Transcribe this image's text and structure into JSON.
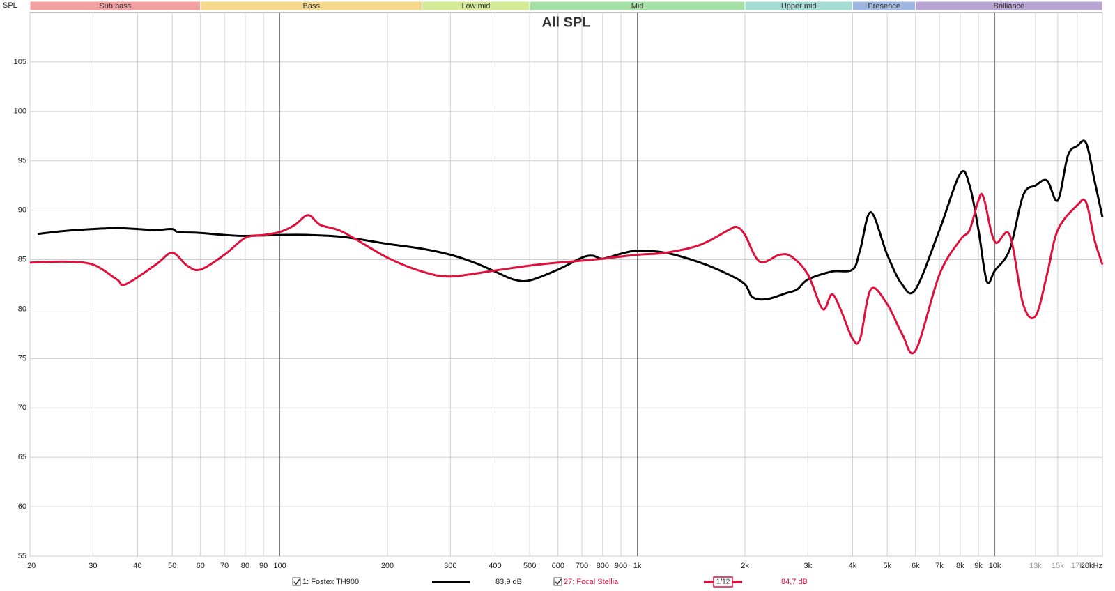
{
  "chart_data": {
    "type": "line",
    "title": "All SPL",
    "y_label": "SPL",
    "log_x": true,
    "grid": true,
    "xlim": [
      20,
      20000
    ],
    "ylim": [
      55,
      110
    ],
    "yticks": [
      55,
      60,
      65,
      70,
      75,
      80,
      85,
      90,
      95,
      100,
      105
    ],
    "xticks": [
      20,
      30,
      40,
      50,
      60,
      70,
      80,
      90,
      100,
      200,
      300,
      400,
      500,
      600,
      700,
      800,
      900,
      {
        "value": 1000,
        "label": "1k"
      },
      {
        "value": 2000,
        "label": "2k"
      },
      {
        "value": 3000,
        "label": "3k"
      },
      {
        "value": 4000,
        "label": "4k"
      },
      {
        "value": 5000,
        "label": "5k"
      },
      {
        "value": 6000,
        "label": "6k"
      },
      {
        "value": 7000,
        "label": "7k"
      },
      {
        "value": 8000,
        "label": "8k"
      },
      {
        "value": 9000,
        "label": "9k"
      },
      {
        "value": 10000,
        "label": "10k"
      },
      {
        "value": 13000,
        "label": "13k"
      },
      {
        "value": 15000,
        "label": "15k"
      },
      {
        "value": 17000,
        "label": "17k"
      },
      {
        "value": 20000,
        "label": "20kHz"
      }
    ],
    "bands": [
      {
        "name": "Sub bass",
        "from": 20,
        "to": 60,
        "color": "#f4a0a0"
      },
      {
        "name": "Bass",
        "from": 60,
        "to": 250,
        "color": "#f7d98c"
      },
      {
        "name": "Low mid",
        "from": 250,
        "to": 500,
        "color": "#d4ea95"
      },
      {
        "name": "Mid",
        "from": 500,
        "to": 2000,
        "color": "#a4e0a4"
      },
      {
        "name": "Upper mid",
        "from": 2000,
        "to": 4000,
        "color": "#a4dcd4"
      },
      {
        "name": "Presence",
        "from": 4000,
        "to": 6000,
        "color": "#9fb8e2"
      },
      {
        "name": "Brilliance",
        "from": 6000,
        "to": 20000,
        "color": "#b9a4d4"
      }
    ],
    "series": [
      {
        "name": "1: Fostex TH900",
        "color": "#000000",
        "level": "83,9 dB",
        "x": [
          21,
          25,
          30,
          35,
          40,
          45,
          50,
          52,
          60,
          70,
          80,
          100,
          120,
          150,
          200,
          250,
          300,
          350,
          400,
          450,
          500,
          600,
          700,
          750,
          800,
          900,
          1000,
          1200,
          1500,
          1800,
          2000,
          2100,
          2300,
          2600,
          2800,
          3000,
          3500,
          4000,
          4200,
          4500,
          5000,
          5500,
          6000,
          7000,
          8000,
          8500,
          9000,
          9500,
          10000,
          11000,
          12000,
          13000,
          14000,
          15000,
          16000,
          17000,
          18000,
          19000,
          20000
        ],
        "values": [
          87.6,
          87.9,
          88.1,
          88.2,
          88.1,
          88.0,
          88.1,
          87.8,
          87.7,
          87.5,
          87.4,
          87.5,
          87.5,
          87.3,
          86.6,
          86.1,
          85.5,
          84.7,
          83.8,
          83.0,
          82.9,
          84.0,
          85.2,
          85.4,
          85.1,
          85.6,
          85.9,
          85.7,
          84.7,
          83.5,
          82.5,
          81.2,
          81.0,
          81.6,
          82.0,
          83.0,
          83.8,
          84.0,
          86.0,
          89.8,
          85.5,
          82.5,
          82.0,
          88.0,
          93.7,
          92.5,
          88.0,
          82.8,
          83.9,
          86.0,
          91.5,
          92.5,
          93.0,
          91.0,
          95.5,
          96.5,
          96.8,
          93.0,
          89.3
        ]
      },
      {
        "name": "27: Focal Stellia",
        "color": "#e0103c",
        "level": "84,7 dB",
        "smoothing": "1/12",
        "x": [
          20,
          25,
          30,
          35,
          37,
          45,
          50,
          55,
          60,
          70,
          80,
          90,
          100,
          110,
          120,
          130,
          150,
          200,
          250,
          300,
          400,
          500,
          600,
          700,
          800,
          1000,
          1200,
          1500,
          1800,
          1900,
          2000,
          2200,
          2500,
          2700,
          3000,
          3300,
          3500,
          3700,
          4000,
          4200,
          4500,
          5000,
          5500,
          6000,
          7000,
          8000,
          8500,
          9000,
          9300,
          10000,
          11000,
          12000,
          13000,
          14000,
          15000,
          17000,
          18000,
          19000,
          20000
        ],
        "values": [
          84.7,
          84.8,
          84.5,
          83.0,
          82.5,
          84.5,
          85.7,
          84.4,
          84.0,
          85.5,
          87.2,
          87.5,
          87.8,
          88.5,
          89.5,
          88.5,
          87.8,
          85.2,
          83.8,
          83.3,
          83.9,
          84.4,
          84.7,
          84.9,
          85.1,
          85.5,
          85.7,
          86.5,
          88.0,
          88.3,
          87.5,
          84.8,
          85.5,
          85.3,
          83.5,
          80.0,
          81.5,
          80.0,
          77.0,
          77.0,
          82.0,
          80.5,
          77.5,
          75.8,
          83.5,
          87.0,
          88.0,
          91.0,
          91.3,
          86.8,
          87.5,
          80.5,
          79.3,
          83.5,
          88.0,
          90.5,
          90.8,
          87.0,
          84.5
        ]
      }
    ]
  }
}
